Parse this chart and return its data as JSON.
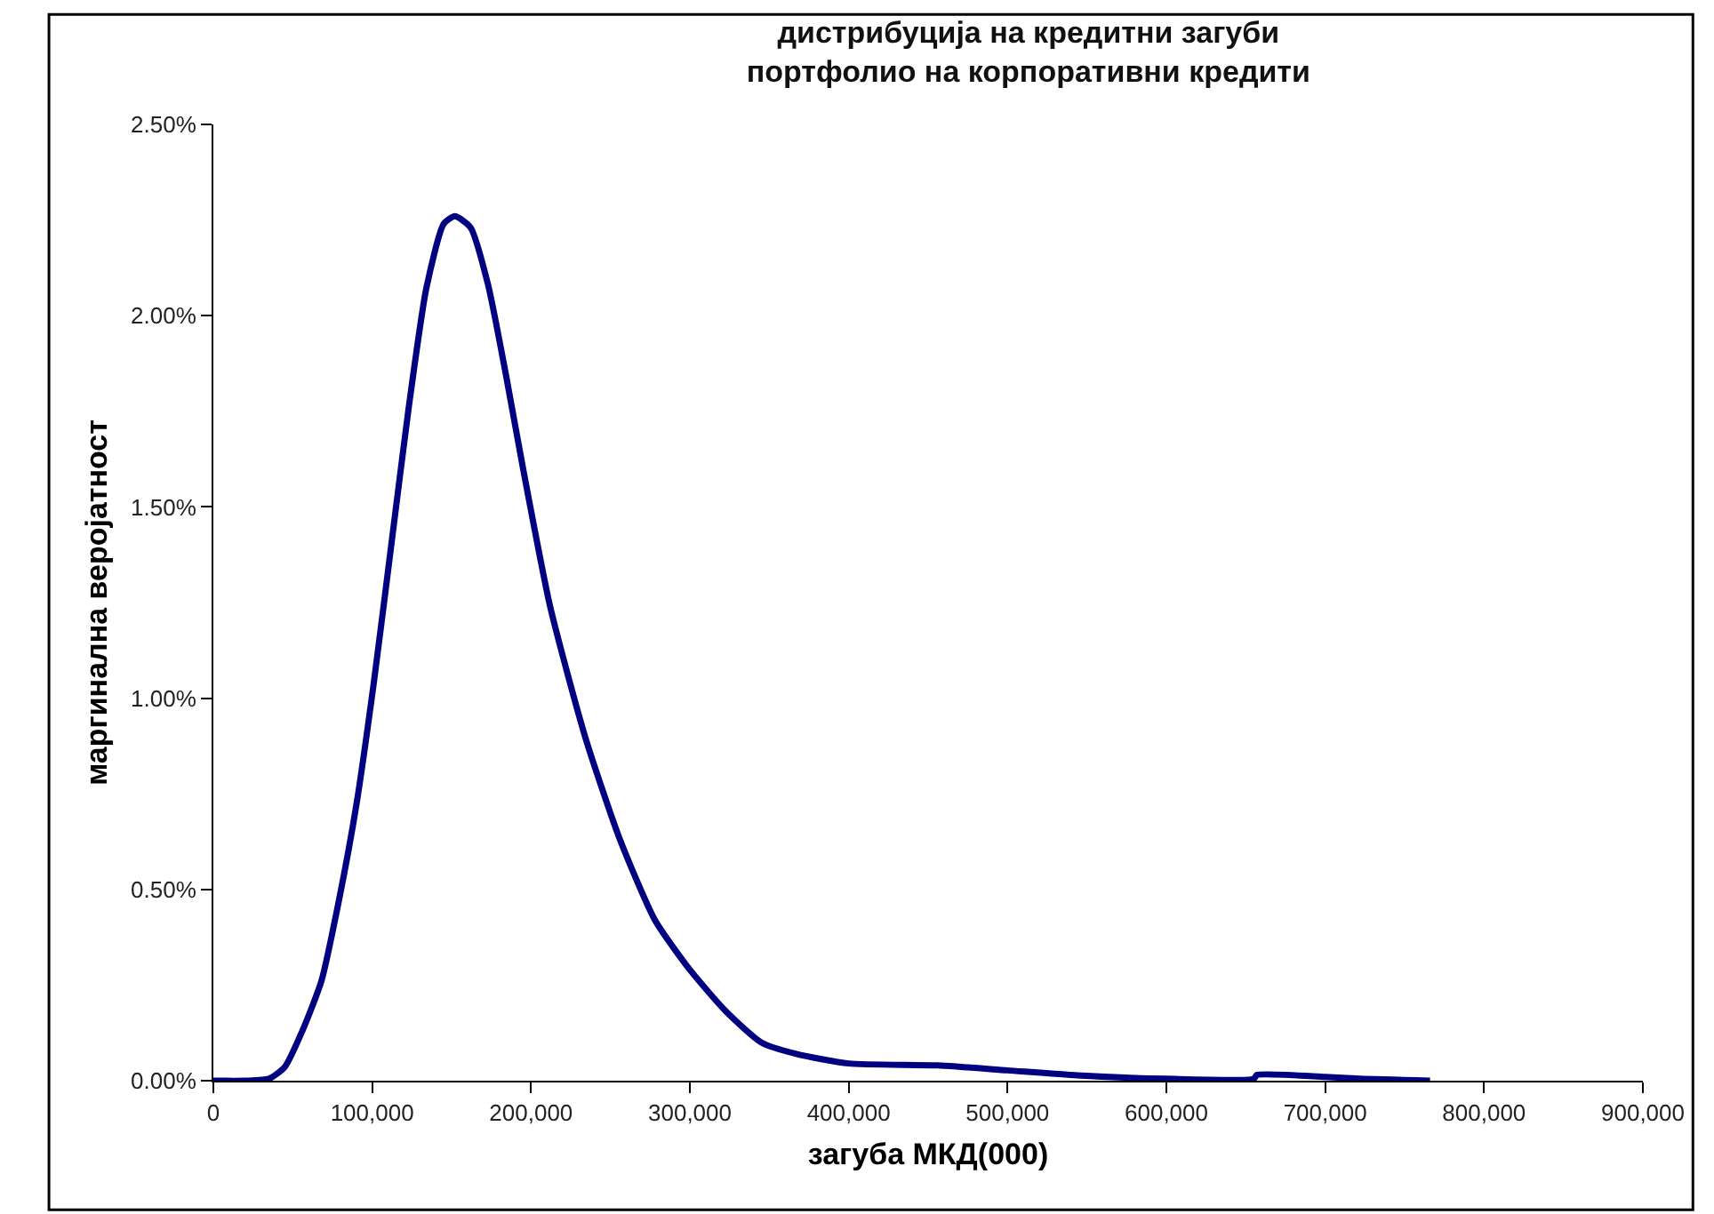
{
  "chart_data": {
    "type": "line",
    "title": "дистрибуција на кредитни загуби\nпортфолио на корпоративни кредити",
    "xlabel": "загуба МКД(000)",
    "ylabel": "маргинална веројатност",
    "x": [
      0,
      20000,
      35000,
      45000,
      56000,
      68000,
      79000,
      90000,
      101000,
      112000,
      123000,
      134000,
      145000,
      152000,
      162000,
      173000,
      184000,
      195000,
      212000,
      234000,
      256000,
      278000,
      300000,
      323000,
      345000,
      367000,
      400000,
      456000,
      500000,
      544000,
      600000,
      655000,
      657000,
      700000,
      722000,
      766000
    ],
    "series": [
      {
        "color": "#000080",
        "values": [
          0,
          0,
          0.005,
          0.036,
          0.13,
          0.26,
          0.47,
          0.72,
          1.04,
          1.4,
          1.76,
          2.07,
          2.24,
          2.26,
          2.23,
          2.08,
          1.85,
          1.6,
          1.24,
          0.9,
          0.63,
          0.42,
          0.29,
          0.18,
          0.1,
          0.07,
          0.045,
          0.04,
          0.027,
          0.014,
          0.005,
          0.005,
          0.015,
          0.01,
          0.005,
          0
        ]
      }
    ],
    "xlim": [
      0,
      900000
    ],
    "xticks": [
      0,
      {
        "value": 100000,
        "label": "100,000"
      },
      {
        "value": 200000,
        "label": "200,000"
      },
      {
        "value": 300000,
        "label": "300,000"
      },
      {
        "value": 400000,
        "label": "400,000"
      },
      {
        "value": 500000,
        "label": "500,000"
      },
      {
        "value": 600000,
        "label": "600,000"
      },
      {
        "value": 700000,
        "label": "700,000"
      },
      {
        "value": 800000,
        "label": "800,000"
      },
      {
        "value": 900000,
        "label": "900,000"
      }
    ],
    "ylim": [
      0,
      2.5
    ],
    "yticks": [
      {
        "value": 0,
        "label": "0.00%"
      },
      {
        "value": 0.5,
        "label": "0.50%"
      },
      {
        "value": 1,
        "label": "1.00%"
      },
      {
        "value": 1.5,
        "label": "1.50%"
      },
      {
        "value": 2,
        "label": "2.00%"
      },
      {
        "value": 2.5,
        "label": "2.50%"
      }
    ],
    "marker": "none",
    "line_style": "solid"
  }
}
